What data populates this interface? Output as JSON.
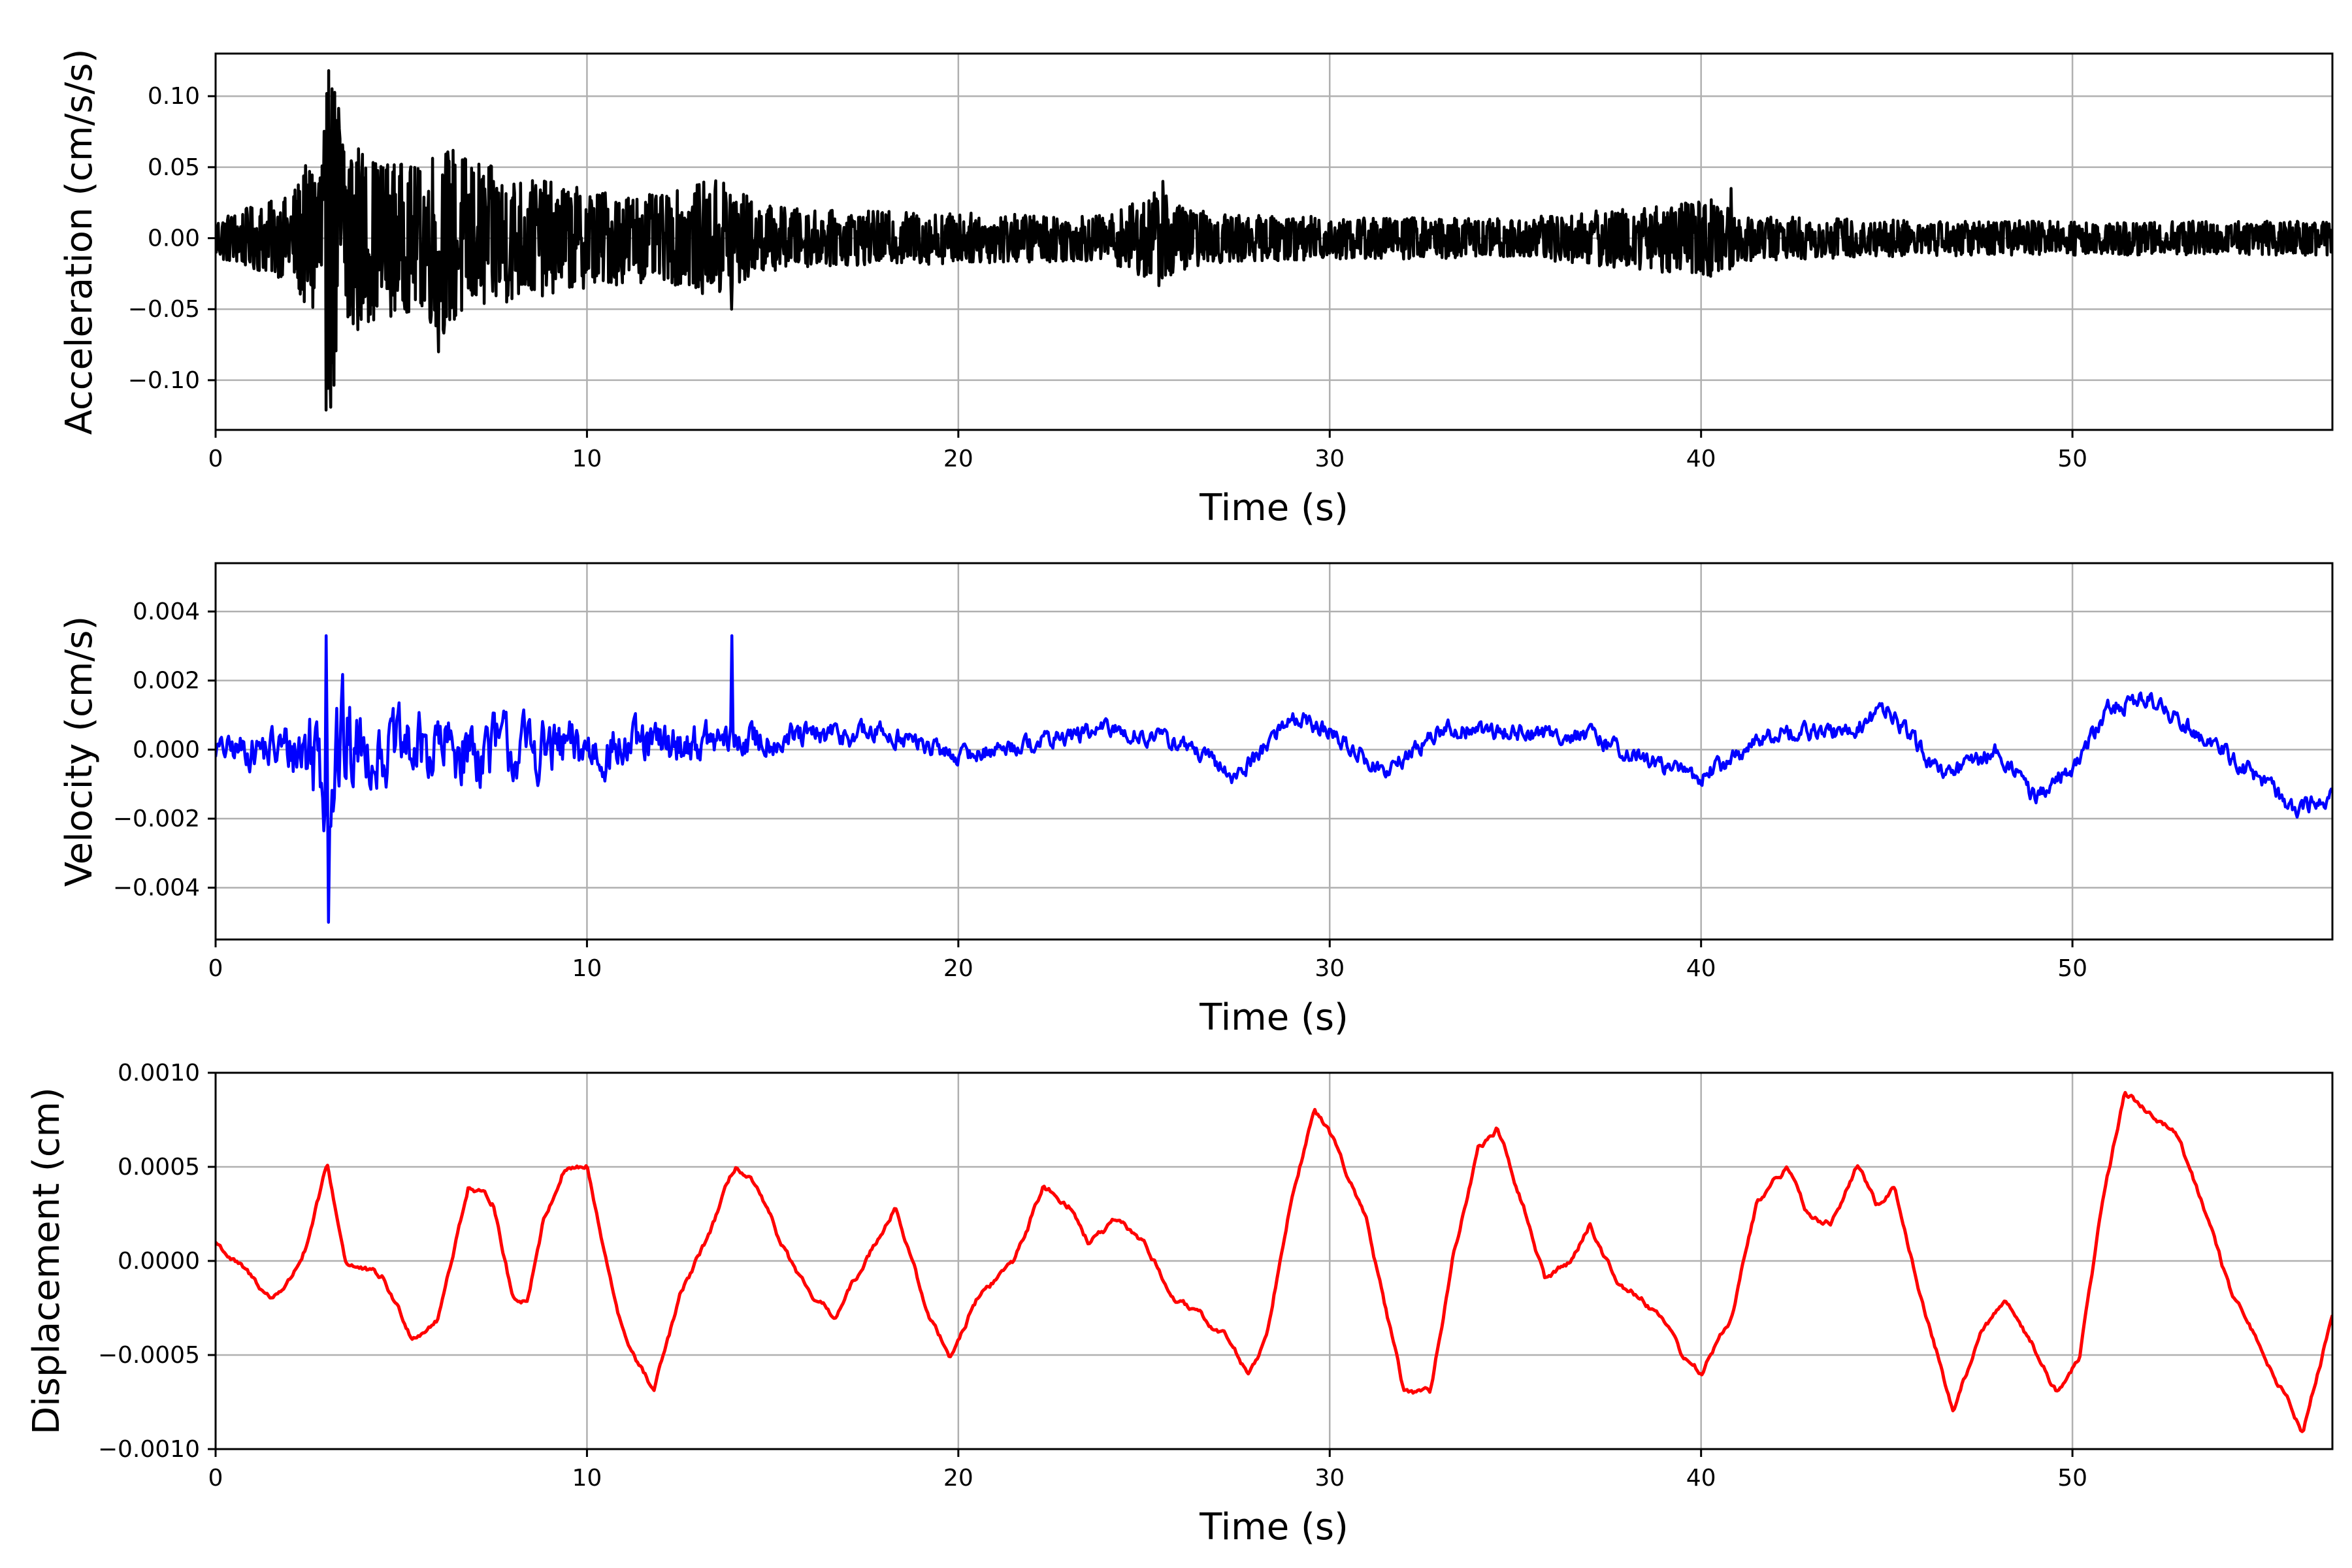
{
  "chart_data": [
    {
      "type": "line",
      "xlabel": "Time (s)",
      "ylabel": "Acceleration (cm/s/s)",
      "xlim": [
        0,
        57
      ],
      "ylim": [
        -0.135,
        0.13
      ],
      "xticks": [
        0,
        10,
        20,
        30,
        40,
        50
      ],
      "xtick_labels": [
        "0",
        "10",
        "20",
        "30",
        "40",
        "50"
      ],
      "yticks": [
        -0.1,
        -0.05,
        0.0,
        0.05,
        0.1
      ],
      "ytick_labels": [
        "−0.10",
        "−0.05",
        "0.00",
        "0.05",
        "0.10"
      ],
      "grid": true,
      "color": "#000000",
      "envelope": {
        "t": [
          0,
          2,
          2.8,
          3.1,
          4,
          5.5,
          6,
          7,
          8,
          10,
          12,
          13.8,
          14.5,
          16,
          20,
          24,
          25.5,
          26.2,
          28,
          35,
          40.5,
          41.2,
          45,
          50,
          57
        ],
        "amp": [
          0.015,
          0.03,
          0.07,
          0.12,
          0.06,
          0.05,
          0.07,
          0.055,
          0.045,
          0.035,
          0.03,
          0.045,
          0.025,
          0.02,
          0.018,
          0.016,
          0.035,
          0.02,
          0.016,
          0.014,
          0.028,
          0.016,
          0.013,
          0.012,
          0.012
        ]
      },
      "peaks": [
        {
          "t": 3.05,
          "value": 0.118
        },
        {
          "t": 2.97,
          "value": -0.121
        },
        {
          "t": 6.0,
          "value": -0.08
        },
        {
          "t": 13.9,
          "value": -0.05
        },
        {
          "t": 25.5,
          "value": 0.04
        },
        {
          "t": 40.8,
          "value": 0.035
        }
      ]
    },
    {
      "type": "line",
      "xlabel": "Time (s)",
      "ylabel": "Velocity (cm/s)",
      "xlim": [
        0,
        57
      ],
      "ylim": [
        -0.0055,
        0.0054
      ],
      "xticks": [
        0,
        10,
        20,
        30,
        40,
        50
      ],
      "xtick_labels": [
        "0",
        "10",
        "20",
        "30",
        "40",
        "50"
      ],
      "yticks": [
        -0.004,
        -0.002,
        0.0,
        0.002,
        0.004
      ],
      "ytick_labels": [
        "−0.004",
        "−0.002",
        "0.000",
        "0.002",
        "0.004"
      ],
      "grid": true,
      "color": "#0000ff",
      "trend": {
        "t": [
          0,
          5,
          10,
          15,
          18,
          20,
          22,
          24,
          26,
          27.5,
          29,
          30,
          31.5,
          33,
          35,
          37,
          38.5,
          40,
          42,
          44,
          45,
          46.5,
          48,
          49,
          50,
          51,
          52,
          53,
          54,
          55,
          56,
          57
        ],
        "v": [
          0,
          0,
          0,
          0.0003,
          0.0005,
          -0.0002,
          0.0002,
          0.0006,
          0.0002,
          -0.0008,
          0.001,
          0.0005,
          -0.0007,
          0.0006,
          0.0005,
          0.0004,
          -0.0003,
          -0.0008,
          0.0005,
          0.0005,
          0.0012,
          -0.0008,
          0.0,
          -0.0014,
          -0.0005,
          0.0012,
          0.0015,
          0.0008,
          0.0,
          -0.0008,
          -0.0018,
          -0.0013
        ]
      },
      "envelope": {
        "t": [
          0,
          2,
          2.8,
          3.1,
          4,
          6,
          8,
          10,
          12,
          14,
          16,
          20,
          57
        ],
        "amp": [
          0.0005,
          0.0012,
          0.003,
          0.004,
          0.0015,
          0.0017,
          0.0015,
          0.0012,
          0.001,
          0.0008,
          0.0006,
          0.0004,
          0.0004
        ]
      },
      "peaks": [
        {
          "t": 2.97,
          "value": 0.0033
        },
        {
          "t": 3.05,
          "value": -0.005
        },
        {
          "t": 13.9,
          "value": 0.0033
        }
      ]
    },
    {
      "type": "line",
      "xlabel": "Time (s)",
      "ylabel": "Displacement (cm)",
      "xlim": [
        0,
        57
      ],
      "ylim": [
        -0.001,
        0.001
      ],
      "xticks": [
        0,
        10,
        20,
        30,
        40,
        50
      ],
      "xtick_labels": [
        "0",
        "10",
        "20",
        "30",
        "40",
        "50"
      ],
      "yticks": [
        -0.001,
        -0.0005,
        0.0,
        0.0005,
        0.001
      ],
      "ytick_labels": [
        "−0.0010",
        "−0.0005",
        "0.0000",
        "0.0005",
        "0.0010"
      ],
      "grid": true,
      "color": "#ff0000",
      "x": [
        0,
        1,
        1.5,
        2,
        2.5,
        3,
        3.5,
        4.5,
        5.3,
        6,
        6.8,
        7.5,
        8,
        8.4,
        8.8,
        9.4,
        10,
        10.5,
        11,
        11.8,
        12.5,
        13.2,
        14,
        14.5,
        15.2,
        16,
        16.7,
        17.5,
        18.3,
        19.2,
        19.8,
        20.5,
        21.5,
        22.3,
        23,
        23.5,
        24.2,
        25,
        25.8,
        26.5,
        27.2,
        27.8,
        28.3,
        29,
        29.6,
        30.2,
        31,
        32,
        32.7,
        33.3,
        34,
        34.5,
        35.2,
        35.8,
        36.5,
        37,
        37.7,
        38.4,
        39,
        39.5,
        40,
        40.8,
        41.5,
        42.3,
        43,
        43.5,
        44.2,
        44.7,
        45.2,
        45.8,
        46.8,
        47.5,
        48.2,
        48.8,
        49.6,
        50.2,
        50.8,
        51.4,
        52,
        52.8,
        53.5,
        54.3,
        55.2,
        56.2,
        57
      ],
      "y": [
        0.0001,
        -0.0001,
        -0.0002,
        -0.0001,
        0.0001,
        0.0005,
        0.0,
        -0.0001,
        -0.0004,
        -0.0003,
        0.0004,
        0.0003,
        -0.0002,
        -0.0002,
        0.0002,
        0.0005,
        0.0005,
        0.0,
        -0.0004,
        -0.0007,
        -0.0002,
        0.0001,
        0.0005,
        0.0004,
        0.0001,
        -0.0002,
        -0.0003,
        0.0,
        0.0003,
        -0.0003,
        -0.0005,
        -0.0002,
        0.0,
        0.0004,
        0.0003,
        0.0001,
        0.0002,
        0.0001,
        -0.0002,
        -0.0003,
        -0.0004,
        -0.0006,
        -0.0004,
        0.0004,
        0.0008,
        0.0006,
        0.0002,
        -0.0007,
        -0.0007,
        0.0,
        0.0006,
        0.0007,
        0.0003,
        -0.0001,
        0.0,
        0.0002,
        -0.0001,
        -0.0002,
        -0.0003,
        -0.0005,
        -0.0006,
        -0.0003,
        0.0003,
        0.0005,
        0.0002,
        0.0002,
        0.0005,
        0.0003,
        0.0004,
        -0.0001,
        -0.0008,
        -0.0004,
        -0.0002,
        -0.0004,
        -0.0007,
        -0.0005,
        0.0003,
        0.0009,
        0.0008,
        0.0007,
        0.0003,
        -0.0002,
        -0.0005,
        -0.0009,
        -0.0003
      ]
    }
  ]
}
